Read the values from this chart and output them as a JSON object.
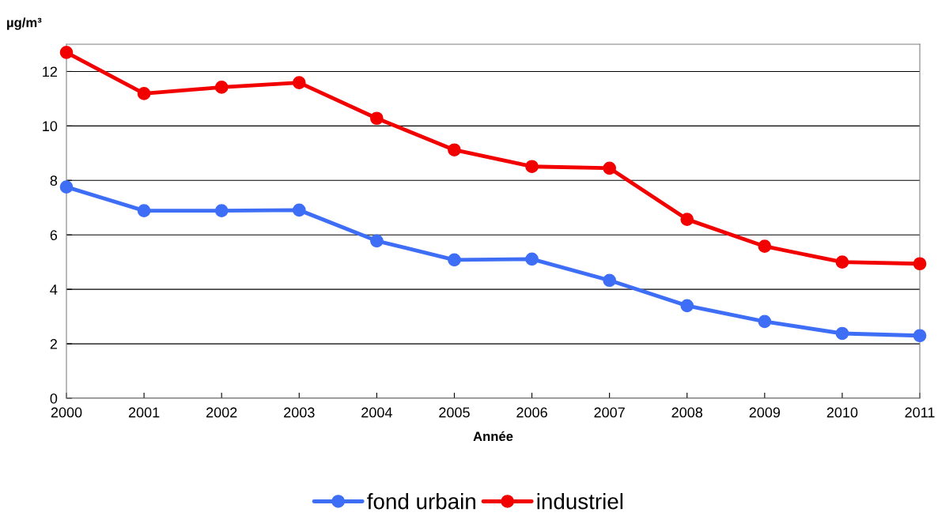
{
  "chart_data": {
    "type": "line",
    "xlabel": "Année",
    "ylabel": "µg/m³",
    "x": [
      2000,
      2001,
      2002,
      2003,
      2004,
      2005,
      2006,
      2007,
      2008,
      2009,
      2010,
      2011
    ],
    "series": [
      {
        "name": "fond urbain",
        "color": "#3f6ef6",
        "values": [
          7.76,
          6.89,
          6.89,
          6.91,
          5.78,
          5.08,
          5.11,
          4.33,
          3.4,
          2.82,
          2.38,
          2.3
        ]
      },
      {
        "name": "industriel",
        "color": "#f20000",
        "values": [
          12.7,
          11.19,
          11.42,
          11.59,
          10.28,
          9.12,
          8.51,
          8.45,
          6.57,
          5.58,
          5.0,
          4.94
        ]
      }
    ],
    "xlim": [
      2000,
      2011
    ],
    "xticks": [
      2000,
      2001,
      2002,
      2003,
      2004,
      2005,
      2006,
      2007,
      2008,
      2009,
      2010,
      2011
    ],
    "ylim": [
      0,
      13
    ],
    "yticks": [
      0,
      2,
      4,
      6,
      8,
      10,
      12
    ],
    "grid": "y",
    "legend": "bottom",
    "marker": "circle",
    "line_style": "solid"
  }
}
